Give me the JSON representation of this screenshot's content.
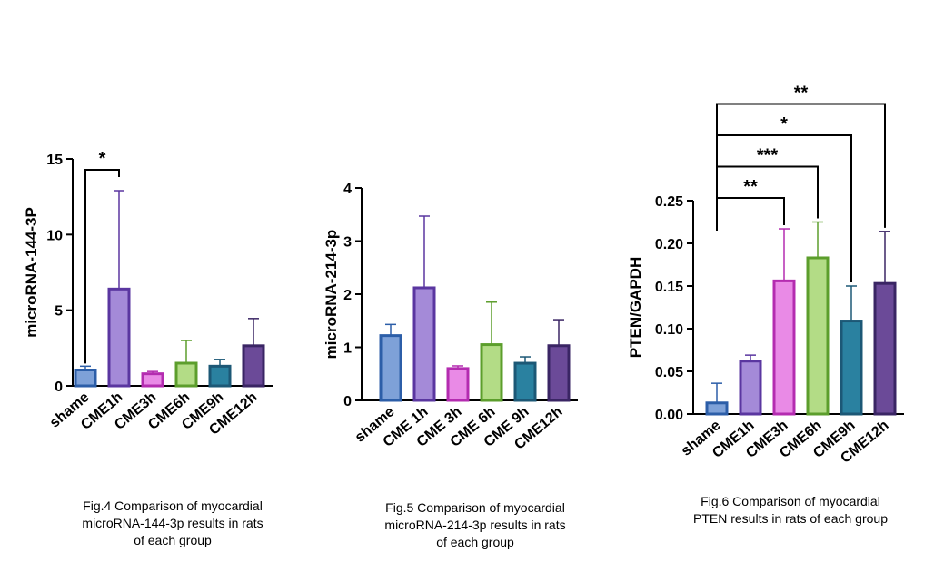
{
  "figures": [
    {
      "caption": [
        "Fig.4 Comparison of myocardial",
        "microRNA-144-3p results in rats",
        "of each group"
      ]
    },
    {
      "caption": [
        "Fig.5 Comparison of myocardial",
        "microRNA-214-3p results in rats",
        "of each group"
      ]
    },
    {
      "caption": [
        "Fig.6 Comparison of myocardial",
        "PTEN results in rats of each group"
      ]
    }
  ],
  "chart_data": [
    {
      "type": "bar",
      "ylabel": "microRNA-144-3P",
      "ylim": [
        0,
        15
      ],
      "yticks": [
        "0",
        "5",
        "10",
        "15"
      ],
      "ytick_values": [
        0,
        5,
        10,
        15
      ],
      "categories": [
        "shame",
        "CME1h",
        "CME3h",
        "CME6h",
        "CME9h",
        "CME12h"
      ],
      "values": [
        1.05,
        6.4,
        0.8,
        1.5,
        1.3,
        2.65
      ],
      "errors_upper": [
        1.3,
        12.9,
        0.95,
        3.0,
        1.75,
        4.45
      ],
      "colors": {
        "fill": [
          "#7ea1d8",
          "#a48ad8",
          "#e98ae6",
          "#b3dc86",
          "#2a81a0",
          "#6b4a98"
        ],
        "stroke": [
          "#2c5ea8",
          "#5a36a0",
          "#b42cb0",
          "#5c9e2c",
          "#1c5876",
          "#3a2564"
        ]
      },
      "annotations": [
        {
          "from": 0,
          "to": 1,
          "label": "*"
        }
      ]
    },
    {
      "type": "bar",
      "ylabel": "microRNA-214-3p",
      "ylim": [
        0,
        4
      ],
      "yticks": [
        "0",
        "1",
        "2",
        "3",
        "4"
      ],
      "ytick_values": [
        0,
        1,
        2,
        3,
        4
      ],
      "categories": [
        "shame",
        "CME 1h",
        "CME 3h",
        "CME 6h",
        "CME 9h",
        "CME12h"
      ],
      "values": [
        1.22,
        2.12,
        0.6,
        1.05,
        0.7,
        1.03
      ],
      "errors_upper": [
        1.43,
        3.47,
        0.65,
        1.85,
        0.82,
        1.52
      ],
      "colors": {
        "fill": [
          "#7ea1d8",
          "#a48ad8",
          "#e98ae6",
          "#b3dc86",
          "#2a81a0",
          "#6b4a98"
        ],
        "stroke": [
          "#2c5ea8",
          "#5a36a0",
          "#b42cb0",
          "#5c9e2c",
          "#1c5876",
          "#3a2564"
        ]
      },
      "annotations": []
    },
    {
      "type": "bar",
      "ylabel": "PTEN/GAPDH",
      "ylim": [
        0,
        0.25
      ],
      "yticks": [
        "0.00",
        "0.05",
        "0.10",
        "0.15",
        "0.20",
        "0.25"
      ],
      "ytick_values": [
        0,
        0.05,
        0.1,
        0.15,
        0.2,
        0.25
      ],
      "categories": [
        "shame",
        "CME1h",
        "CME3h",
        "CME6h",
        "CME9h",
        "CME12h"
      ],
      "values": [
        0.013,
        0.062,
        0.156,
        0.183,
        0.109,
        0.153
      ],
      "errors_upper": [
        0.036,
        0.069,
        0.217,
        0.225,
        0.15,
        0.214
      ],
      "colors": {
        "fill": [
          "#7ea1d8",
          "#a48ad8",
          "#e98ae6",
          "#b3dc86",
          "#2a81a0",
          "#6b4a98"
        ],
        "stroke": [
          "#2c5ea8",
          "#5a36a0",
          "#b42cb0",
          "#5c9e2c",
          "#1c5876",
          "#3a2564"
        ]
      },
      "annotations": [
        {
          "from": 0,
          "to": 2,
          "label": "**"
        },
        {
          "from": 0,
          "to": 3,
          "label": "***"
        },
        {
          "from": 0,
          "to": 4,
          "label": "*"
        },
        {
          "from": 0,
          "to": 5,
          "label": "**"
        }
      ]
    }
  ]
}
